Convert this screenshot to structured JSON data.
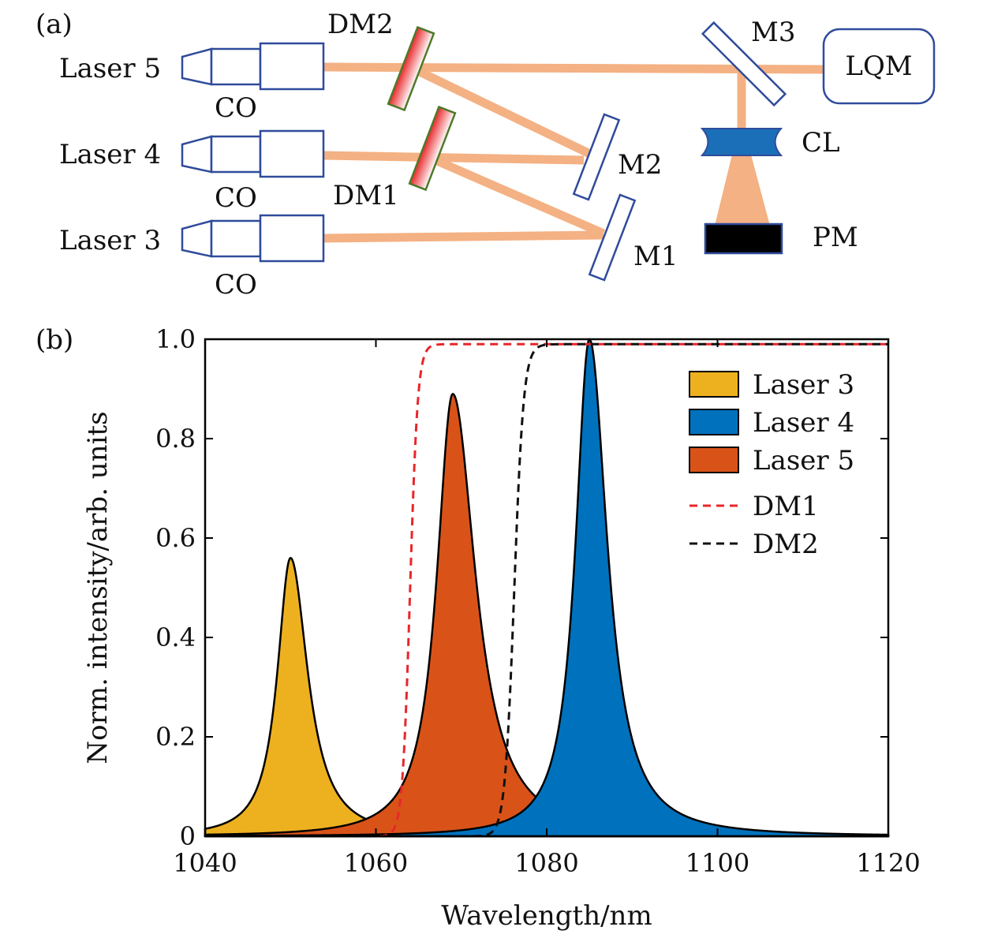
{
  "diagram": {
    "panel_label": "(a)",
    "lasers": [
      {
        "label": "Laser 5",
        "objective": "CO"
      },
      {
        "label": "Laser 4",
        "objective": "CO"
      },
      {
        "label": "Laser 3",
        "objective": "CO"
      }
    ],
    "components": {
      "dm1": "DM1",
      "dm2": "DM2",
      "m1": "M1",
      "m2": "M2",
      "m3": "M3",
      "lqm": "LQM",
      "cl": "CL",
      "pm": "PM"
    },
    "colors": {
      "beam": "#F4B183",
      "optics_outline": "#2F4B9B",
      "dichroic_red": "#E8262A",
      "dichroic_border": "#4E7A2A",
      "lens_fill": "#1B6FB8",
      "pm_fill": "#000000"
    }
  },
  "chart_data": {
    "panel_label": "(b)",
    "type": "area",
    "xlabel": "Wavelength/nm",
    "ylabel": "Norm. intensity/arb. units",
    "xlim": [
      1040,
      1120
    ],
    "ylim": [
      0,
      1.0
    ],
    "xticks": [
      1040,
      1060,
      1080,
      1100,
      1120
    ],
    "yticks": [
      0,
      0.2,
      0.4,
      0.6,
      0.8,
      1.0
    ],
    "ytick_labels": [
      "0",
      "0.2",
      "0.4",
      "0.6",
      "0.8",
      "1.0"
    ],
    "grid": false,
    "legend_position": "top-right",
    "series": [
      {
        "name": "Laser 3",
        "style": "filled",
        "color": "#EDB120",
        "peak_x": 1050,
        "peak_y": 0.56,
        "width_left": 1.9,
        "width_right": 2.5
      },
      {
        "name": "Laser 4",
        "style": "filled",
        "color": "#0072BD",
        "peak_x": 1085,
        "peak_y": 1.0,
        "width_left": 2.0,
        "width_right": 2.6
      },
      {
        "name": "Laser 5",
        "style": "filled",
        "color": "#D95319",
        "peak_x": 1069,
        "peak_y": 0.89,
        "width_left": 2.3,
        "width_right": 3.3
      },
      {
        "name": "DM1",
        "style": "dashed",
        "color": "#E8262A",
        "edge_x": 1064.0,
        "edge_width": 0.45,
        "plateau": 0.99
      },
      {
        "name": "DM2",
        "style": "dashed",
        "color": "#111111",
        "edge_x": 1076.2,
        "edge_width": 0.55,
        "plateau": 0.99
      }
    ]
  }
}
